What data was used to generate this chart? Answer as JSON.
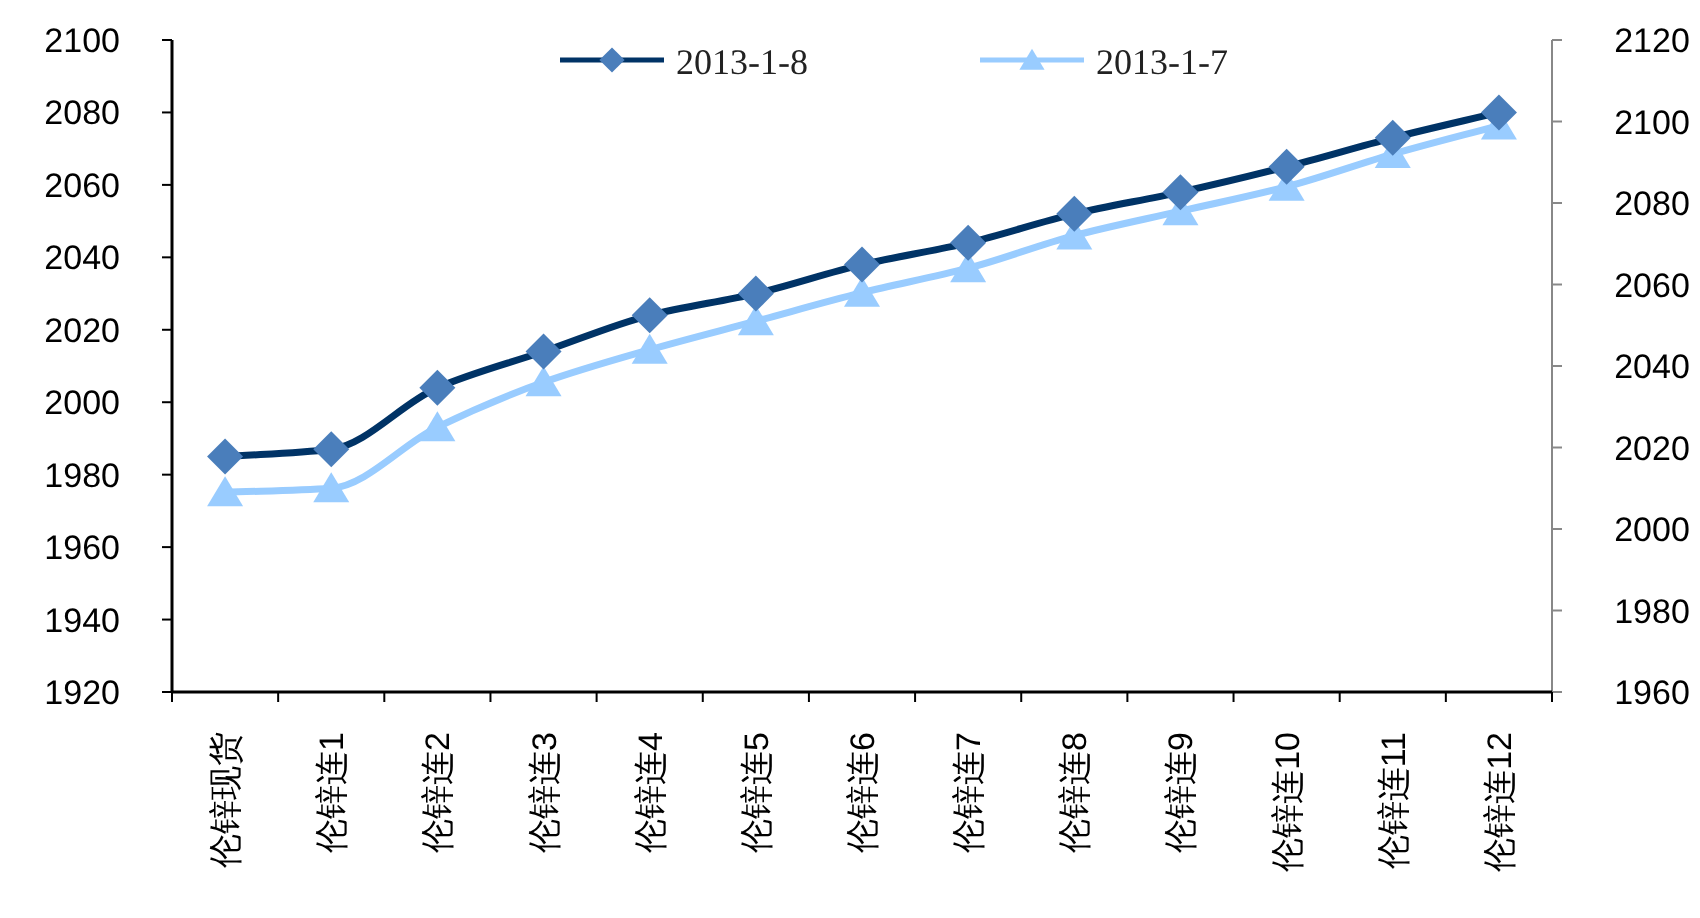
{
  "chart_data": {
    "type": "line",
    "categories": [
      "伦锌现货",
      "伦锌连1",
      "伦锌连2",
      "伦锌连3",
      "伦锌连4",
      "伦锌连5",
      "伦锌连6",
      "伦锌连7",
      "伦锌连8",
      "伦锌连9",
      "伦锌连10",
      "伦锌连11",
      "伦锌连12"
    ],
    "series": [
      {
        "name": "2013-1-8",
        "color": "#003366",
        "marker": "diamond",
        "values": [
          1985,
          1987,
          2004,
          2014,
          2024,
          2030,
          2038,
          2044,
          2052,
          2058,
          2065,
          2073,
          2080
        ]
      },
      {
        "name": "2013-1-7",
        "color": "#99ccff",
        "marker": "triangle",
        "axis": "y2",
        "values": [
          2009,
          2010,
          2025,
          2036,
          2044,
          2051,
          2058,
          2064,
          2072,
          2078,
          2084,
          2092,
          2099
        ]
      }
    ],
    "ylim": [
      1920,
      2100
    ],
    "yticks": [
      1920,
      1940,
      1960,
      1980,
      2000,
      2020,
      2040,
      2060,
      2080,
      2100
    ],
    "y2lim": [
      1960,
      2120
    ],
    "y2ticks": [
      1960,
      1980,
      2000,
      2020,
      2040,
      2060,
      2080,
      2100,
      2120
    ],
    "legend": "top"
  }
}
